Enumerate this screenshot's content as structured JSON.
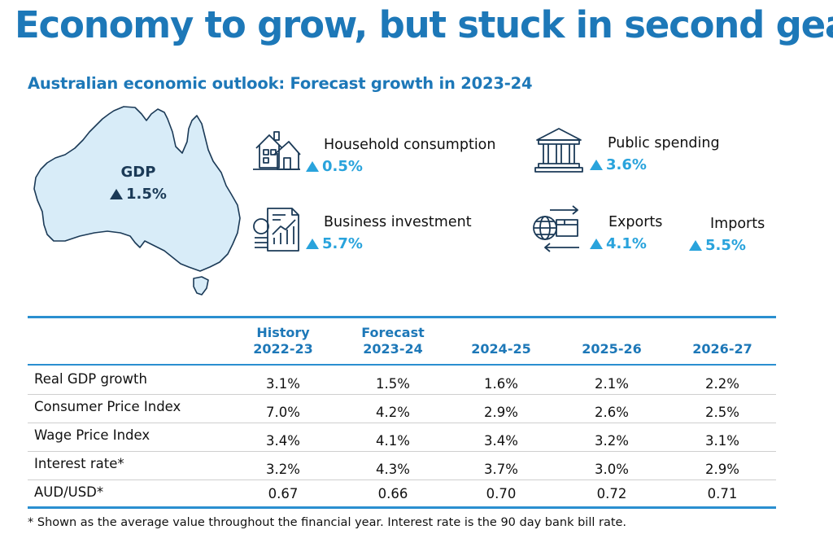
{
  "title": "Economy to grow, but stuck in second gear.",
  "subtitle": "Australian economic outlook: Forecast growth in 2023-24",
  "gdp": {
    "label": "GDP",
    "value": "1.5%"
  },
  "indicators": [
    {
      "label": "Household consumption",
      "value": "0.5%",
      "icon": "house-icon"
    },
    {
      "label": "Public spending",
      "value": "3.6%",
      "icon": "government-building-icon"
    },
    {
      "label": "Business investment",
      "value": "5.7%",
      "icon": "investment-chart-icon"
    },
    {
      "label": "Exports",
      "value": "4.1%",
      "icon": "globe-trade-icon"
    },
    {
      "label": "Imports",
      "value": "5.5%"
    }
  ],
  "table": {
    "headers": [
      {
        "line1": "History",
        "line2": "2022-23"
      },
      {
        "line1": "Forecast",
        "line2": "2023-24"
      },
      {
        "line1": "",
        "line2": "2024-25"
      },
      {
        "line1": "",
        "line2": "2025-26"
      },
      {
        "line1": "",
        "line2": "2026-27"
      }
    ],
    "rows": [
      {
        "label": "Real GDP growth",
        "values": [
          "3.1%",
          "1.5%",
          "1.6%",
          "2.1%",
          "2.2%"
        ]
      },
      {
        "label": "Consumer Price Index",
        "values": [
          "7.0%",
          "4.2%",
          "2.9%",
          "2.6%",
          "2.5%"
        ]
      },
      {
        "label": "Wage Price Index",
        "values": [
          "3.4%",
          "4.1%",
          "3.4%",
          "3.2%",
          "3.1%"
        ]
      },
      {
        "label": "Interest rate*",
        "values": [
          "3.2%",
          "4.3%",
          "3.7%",
          "3.0%",
          "2.9%"
        ]
      },
      {
        "label": "AUD/USD*",
        "values": [
          "0.67",
          "0.66",
          "0.70",
          "0.72",
          "0.71"
        ]
      }
    ]
  },
  "footnote": "* Shown as the average value throughout the financial year. Interest rate is the 90 day bank bill rate.",
  "colors": {
    "accent": "#1d78b8",
    "increase": "#29a3dc",
    "map_fill": "#d8ecf8",
    "map_stroke": "#1b3a57"
  }
}
